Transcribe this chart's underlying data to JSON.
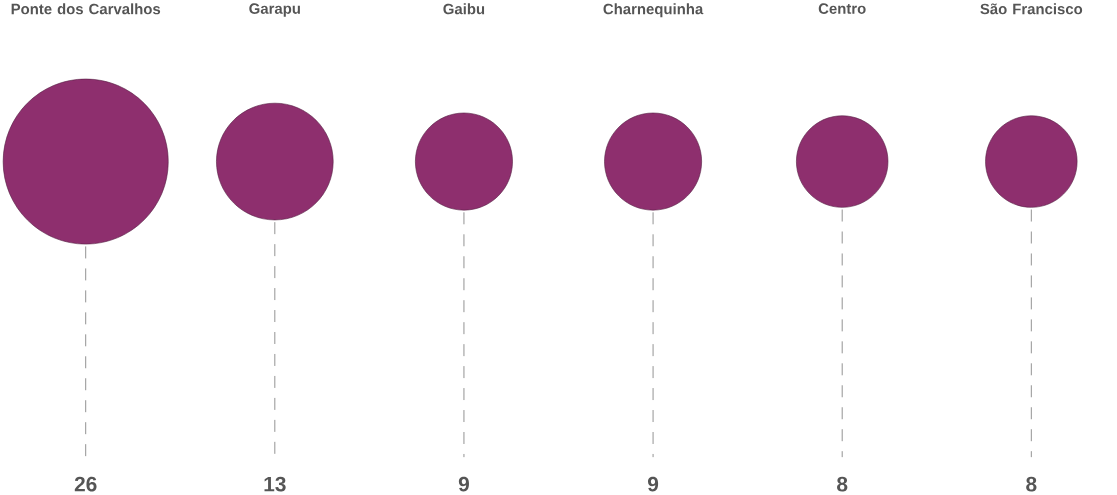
{
  "chart_data": {
    "type": "other",
    "categories": [
      "Ponte dos Carvalhos",
      "Garapu",
      "Gaibu",
      "Charnequinha",
      "Centro",
      "São Francisco"
    ],
    "values": [
      26,
      13,
      9,
      9,
      8,
      8
    ],
    "color": "#8e2f6e",
    "data_labels": true
  }
}
